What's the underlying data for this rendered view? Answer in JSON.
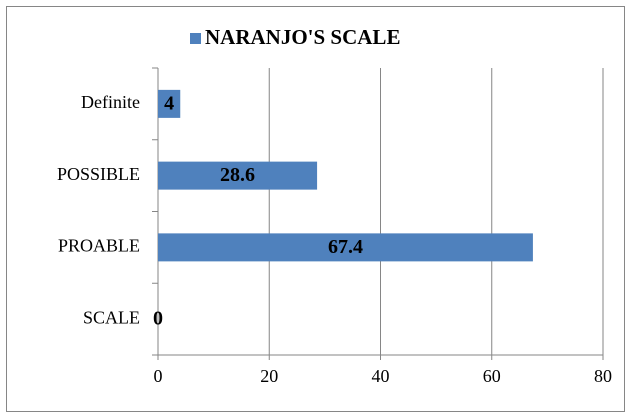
{
  "chart_data": {
    "type": "bar",
    "orientation": "horizontal",
    "categories": [
      "Definite",
      "POSSIBLE",
      "PROABLE",
      "SCALE"
    ],
    "series": [
      {
        "name": "NARANJO'S SCALE",
        "color": "#4f81bd",
        "values": [
          4,
          28.6,
          67.4,
          0
        ]
      }
    ],
    "xlim": [
      0,
      80
    ],
    "xticks": [
      0,
      20,
      40,
      60,
      80
    ],
    "grid": true,
    "legend": "top",
    "data_labels": true
  }
}
